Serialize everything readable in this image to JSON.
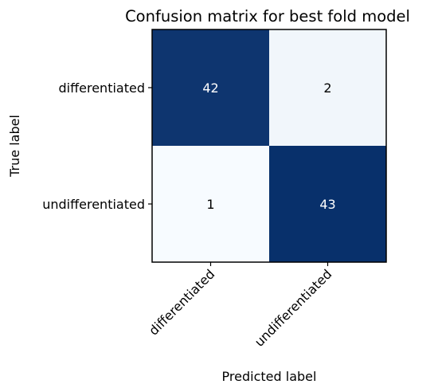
{
  "chart_data": {
    "type": "heatmap",
    "title": "Confusion matrix for best fold model",
    "xlabel": "Predicted label",
    "ylabel": "True label",
    "row_labels": [
      "differentiated",
      "undifferentiated"
    ],
    "col_labels": [
      "differentiated",
      "undifferentiated"
    ],
    "values": [
      [
        42,
        2
      ],
      [
        1,
        43
      ]
    ],
    "colormap": "Blues",
    "colors": {
      "high": "#08306b",
      "low": "#f7fbff",
      "text_light": "#ffffff",
      "text_dark": "#000000"
    }
  }
}
